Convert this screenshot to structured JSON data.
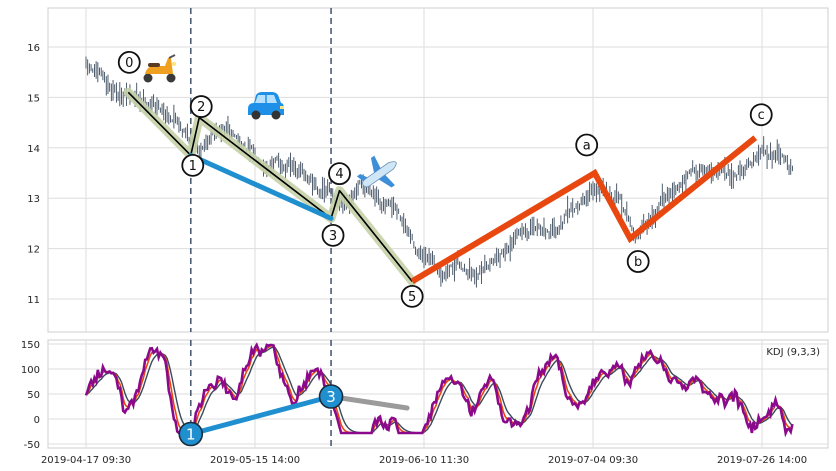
{
  "chart_data": [
    {
      "type": "line",
      "subtype": "ohlc-with-elliott-wave-overlay",
      "title": "",
      "xlabel": "",
      "ylabel": "",
      "ylim": [
        10.4,
        16.6
      ],
      "yticks": [
        11,
        12,
        13,
        14,
        15,
        16
      ],
      "x_tick_labels": [
        "2019-04-17 09:30",
        "2019-05-15 14:00",
        "2019-06-10 11:30",
        "2019-07-04 09:30",
        "2019-07-26 14:00"
      ],
      "x_range_bars": [
        0,
        430
      ],
      "x_tick_positions_bars": [
        0,
        100,
        200,
        300,
        400
      ],
      "grid": true,
      "price_path": [
        {
          "bar": 0,
          "price": 15.6
        },
        {
          "bar": 10,
          "price": 15.3
        },
        {
          "bar": 25,
          "price": 15.0
        },
        {
          "bar": 40,
          "price": 14.9
        },
        {
          "bar": 55,
          "price": 14.6
        },
        {
          "bar": 62,
          "price": 14.2
        },
        {
          "bar": 67,
          "price": 14.0
        },
        {
          "bar": 75,
          "price": 14.4
        },
        {
          "bar": 85,
          "price": 14.3
        },
        {
          "bar": 100,
          "price": 13.8
        },
        {
          "bar": 115,
          "price": 13.7
        },
        {
          "bar": 130,
          "price": 13.4
        },
        {
          "bar": 145,
          "price": 13.1
        },
        {
          "bar": 155,
          "price": 12.7
        },
        {
          "bar": 162,
          "price": 13.1
        },
        {
          "bar": 170,
          "price": 13.2
        },
        {
          "bar": 180,
          "price": 12.8
        },
        {
          "bar": 190,
          "price": 12.3
        },
        {
          "bar": 200,
          "price": 11.7
        },
        {
          "bar": 210,
          "price": 11.6
        },
        {
          "bar": 220,
          "price": 11.7
        },
        {
          "bar": 230,
          "price": 11.5
        },
        {
          "bar": 245,
          "price": 12.0
        },
        {
          "bar": 260,
          "price": 12.3
        },
        {
          "bar": 275,
          "price": 12.4
        },
        {
          "bar": 290,
          "price": 12.8
        },
        {
          "bar": 300,
          "price": 13.2
        },
        {
          "bar": 307,
          "price": 13.4
        },
        {
          "bar": 318,
          "price": 12.8
        },
        {
          "bar": 325,
          "price": 12.2
        },
        {
          "bar": 335,
          "price": 12.6
        },
        {
          "bar": 350,
          "price": 13.3
        },
        {
          "bar": 365,
          "price": 13.6
        },
        {
          "bar": 380,
          "price": 13.5
        },
        {
          "bar": 395,
          "price": 13.8
        },
        {
          "bar": 405,
          "price": 14.0
        },
        {
          "bar": 418,
          "price": 13.6
        }
      ],
      "impulse_points": [
        {
          "label": "0",
          "bar": 25,
          "price": 15.1
        },
        {
          "label": "1",
          "bar": 62,
          "price": 13.85
        },
        {
          "label": "2",
          "bar": 67,
          "price": 14.6
        },
        {
          "label": "3",
          "bar": 145,
          "price": 12.6
        },
        {
          "label": "4",
          "bar": 150,
          "price": 13.15
        },
        {
          "label": "5",
          "bar": 193,
          "price": 11.35
        }
      ],
      "connector_points": [
        {
          "bar": 62,
          "price": 13.85
        },
        {
          "bar": 145,
          "price": 12.6
        }
      ],
      "correction_points": [
        {
          "label": "a",
          "bar": 301,
          "price": 13.5
        },
        {
          "label": "b",
          "bar": 322,
          "price": 12.2
        },
        {
          "label": "c",
          "bar": 396,
          "price": 14.2
        }
      ],
      "vertical_markers_bars": [
        62,
        145
      ],
      "emojis": [
        "scooter",
        "car",
        "airplane"
      ],
      "colors": {
        "impulse": "#000000",
        "impulse_highlight": "#c5d2a8",
        "connector": "#1f8fd0",
        "correction": "#e8470f",
        "bar": "#3a4a5c",
        "marker": "#4a5d74"
      }
    },
    {
      "type": "line",
      "subtype": "kdj-indicator",
      "legend": "KDJ (9,3,3)",
      "legend_position": "top-right",
      "ylim": [
        -52,
        158
      ],
      "yticks": [
        -50,
        0,
        50,
        100,
        150
      ],
      "grid": true,
      "series": [
        {
          "name": "K",
          "color": "#e8470f"
        },
        {
          "name": "D",
          "color": "#3a4a5c"
        },
        {
          "name": "J",
          "color": "#8b0a8b"
        }
      ],
      "annotations": [
        {
          "label": "1",
          "bar": 62,
          "value": -30
        },
        {
          "label": "3",
          "bar": 145,
          "value": 45
        },
        {
          "label": "",
          "bar": 190,
          "value": 22
        }
      ],
      "colors": {
        "annotation_fill": "#1f8fd0",
        "annotation_line": "#1f8fd0",
        "annotation_tail": "#8a8a8a"
      }
    }
  ]
}
